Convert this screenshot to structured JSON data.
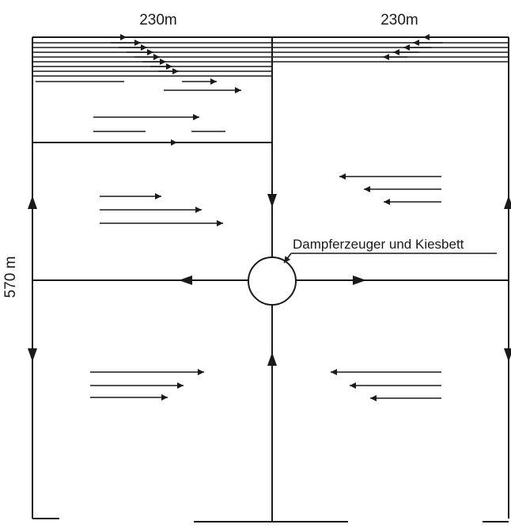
{
  "dimensions": {
    "width_left": "230m",
    "width_right": "230m",
    "height": "570 m"
  },
  "callout": {
    "label": "Dampferzeuger und Kiesbett"
  },
  "colors": {
    "ink": "#1a1a1a",
    "background": "#ffffff"
  }
}
